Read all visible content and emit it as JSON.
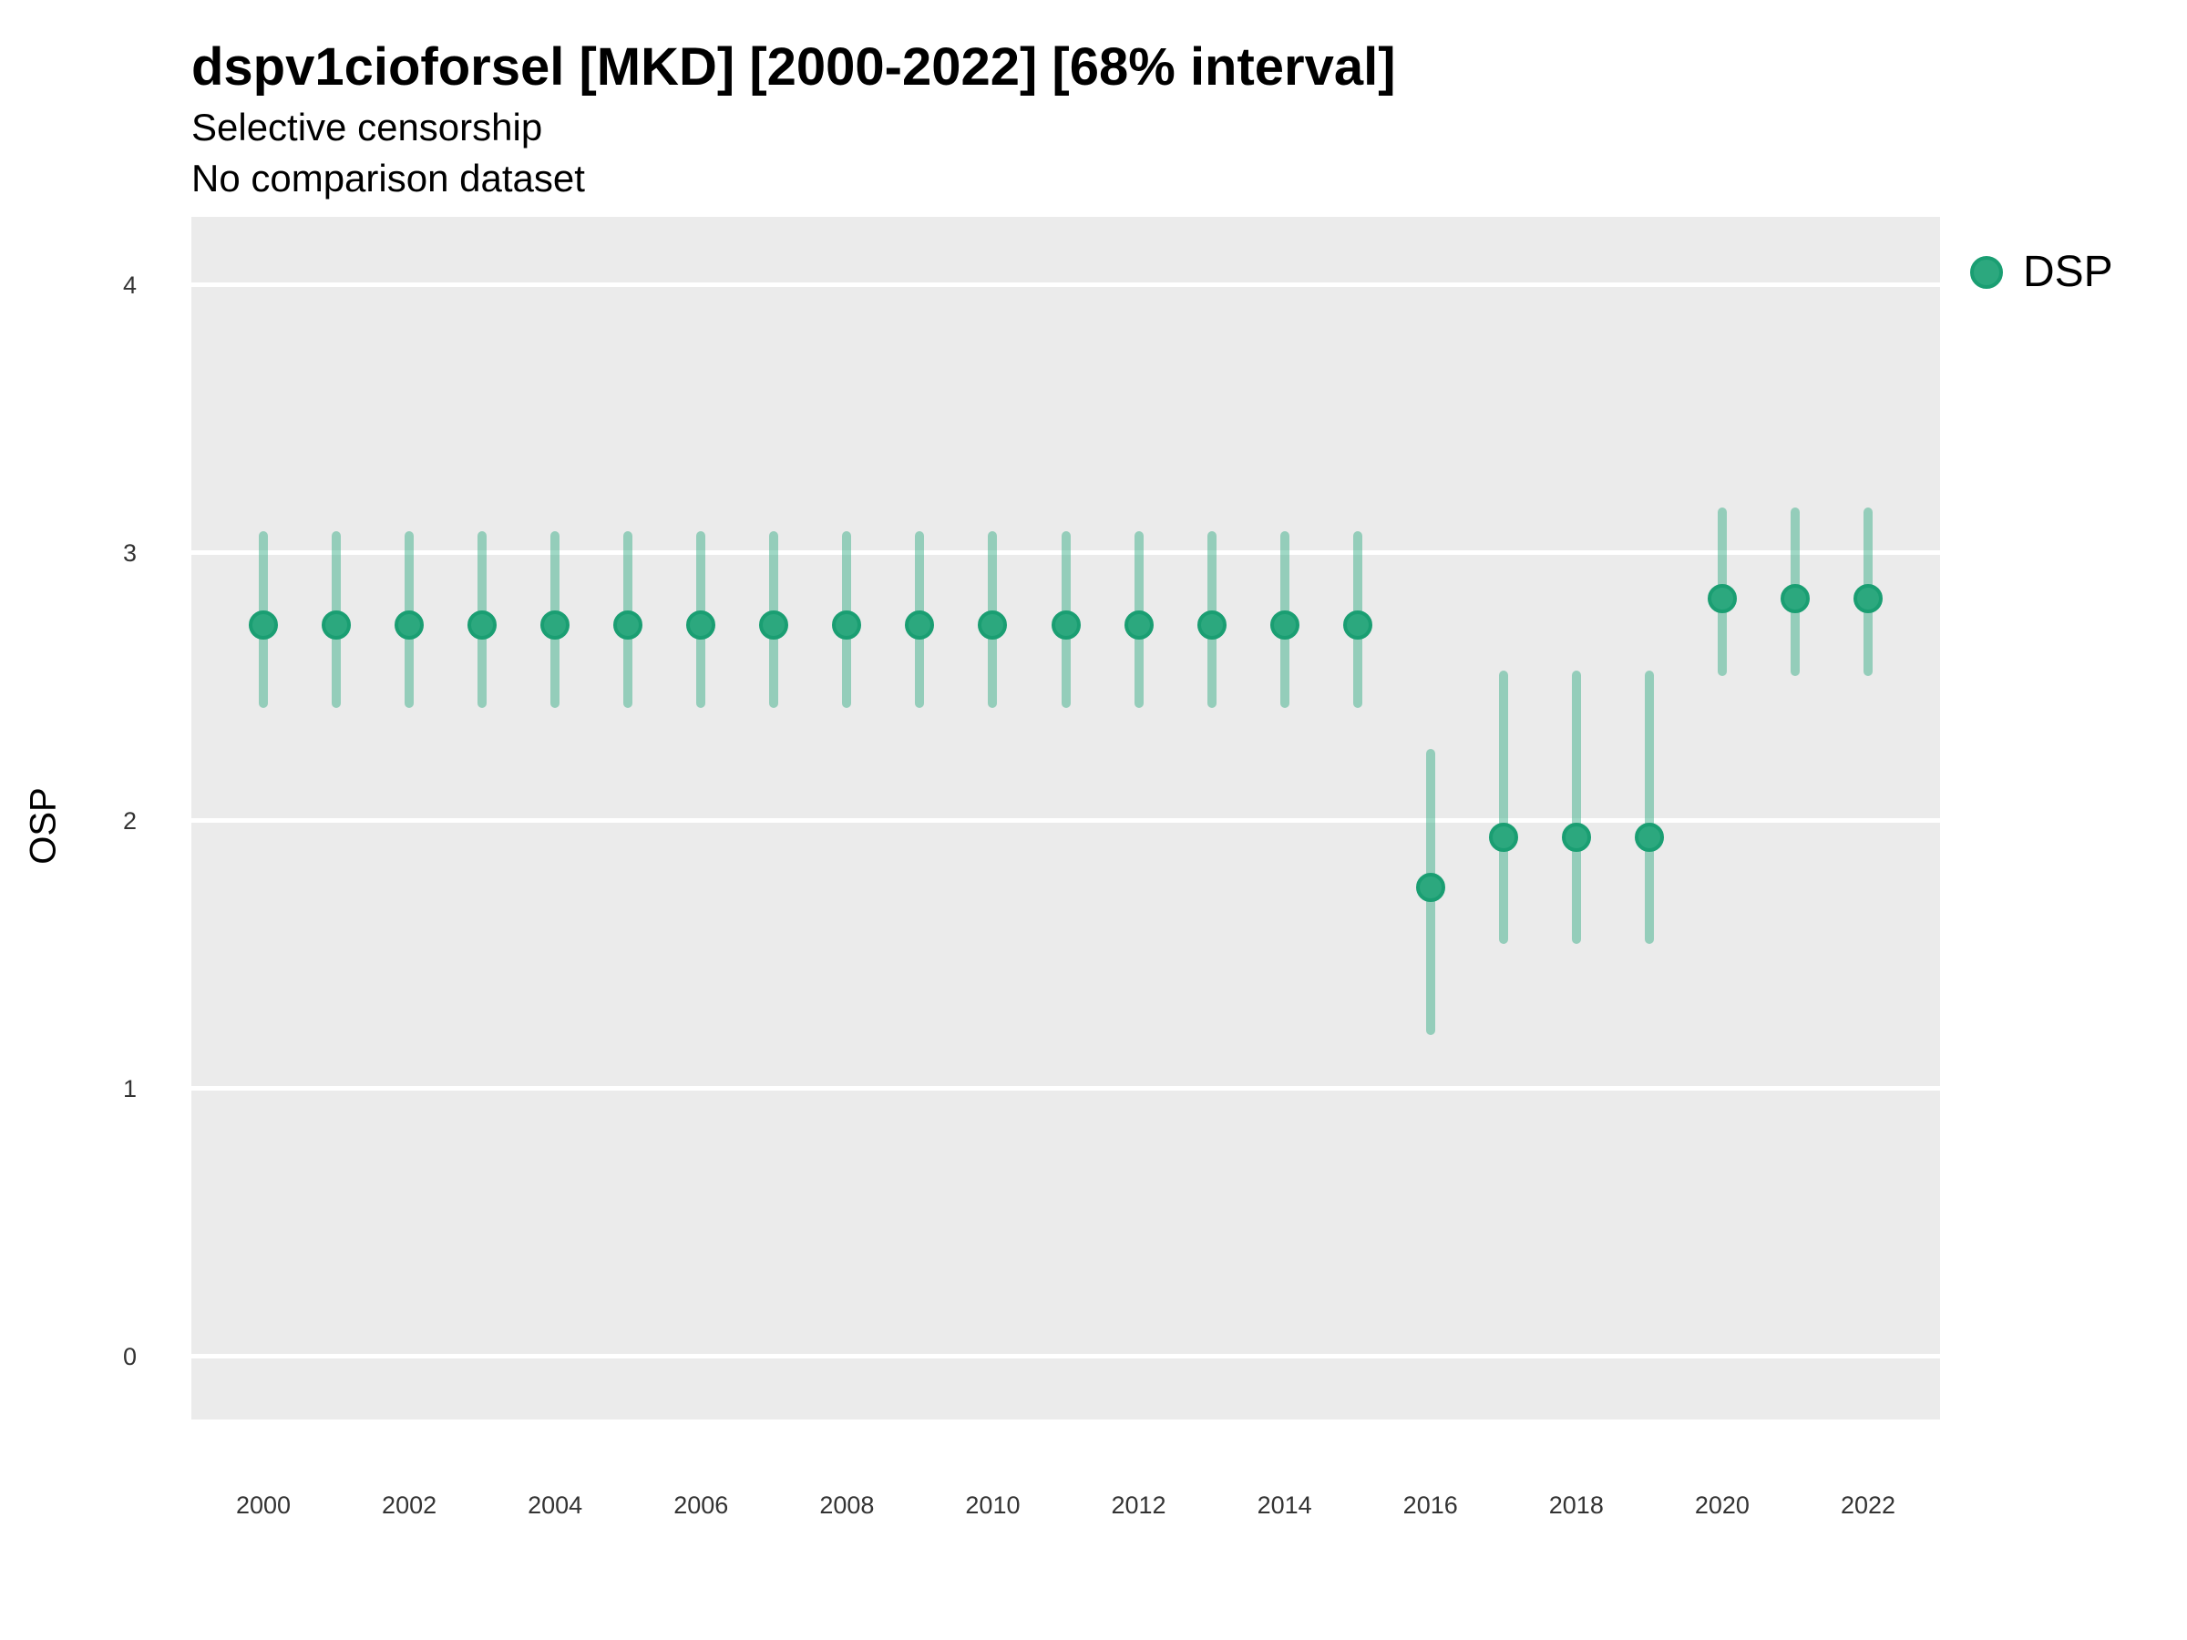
{
  "header": {
    "title": "dspv1cioforsel [MKD] [2000-2022] [68% interval]",
    "subtitle_line1": "Selective censorship",
    "subtitle_line2": "No comparison dataset"
  },
  "legend": {
    "label": "DSP",
    "dot_color": "#2CA87E",
    "dot_border_color": "#1A9E72"
  },
  "axes": {
    "y_label": "OSP",
    "y_ticks": [
      0,
      1,
      2,
      3,
      4
    ],
    "x_ticks": [
      2000,
      2002,
      2004,
      2006,
      2008,
      2010,
      2012,
      2014,
      2016,
      2018,
      2020,
      2022
    ],
    "x_domain": [
      1999.013,
      2022.987
    ],
    "y_domain": [
      -0.235,
      4.255
    ],
    "grid_color": "#FFFFFF",
    "panel_color": "#EBEBEB"
  },
  "chart_data": {
    "type": "scatter",
    "title": "dspv1cioforsel [MKD] [2000-2022] [68% interval]",
    "subtitle": [
      "Selective censorship",
      "No comparison dataset"
    ],
    "xlabel": "",
    "ylabel": "OSP",
    "interval": "68%",
    "xlim": [
      1999,
      2023
    ],
    "ylim": [
      -0.235,
      4.255
    ],
    "grid": "horizontal-major-only",
    "legend_position": "right",
    "series": [
      {
        "name": "DSP",
        "marker_color": "#2CA87E",
        "marker_border_color": "#1A9E72",
        "interval_color_rgba": "rgba(42,168,126,0.45)",
        "x": [
          2000,
          2001,
          2002,
          2003,
          2004,
          2005,
          2006,
          2007,
          2008,
          2009,
          2010,
          2011,
          2012,
          2013,
          2014,
          2015,
          2016,
          2017,
          2018,
          2019,
          2020,
          2021,
          2022
        ],
        "y": [
          2.73,
          2.73,
          2.73,
          2.73,
          2.73,
          2.73,
          2.73,
          2.73,
          2.73,
          2.73,
          2.73,
          2.73,
          2.73,
          2.73,
          2.73,
          2.73,
          1.75,
          1.94,
          1.94,
          1.94,
          2.83,
          2.83,
          2.83
        ],
        "y_lo": [
          2.42,
          2.42,
          2.42,
          2.42,
          2.42,
          2.42,
          2.42,
          2.42,
          2.42,
          2.42,
          2.42,
          2.42,
          2.42,
          2.42,
          2.42,
          2.42,
          1.2,
          1.54,
          1.54,
          1.54,
          2.54,
          2.54,
          2.54
        ],
        "y_hi": [
          3.08,
          3.08,
          3.08,
          3.08,
          3.08,
          3.08,
          3.08,
          3.08,
          3.08,
          3.08,
          3.08,
          3.08,
          3.08,
          3.08,
          3.08,
          3.08,
          2.27,
          2.56,
          2.56,
          2.56,
          3.17,
          3.17,
          3.17
        ]
      }
    ]
  }
}
